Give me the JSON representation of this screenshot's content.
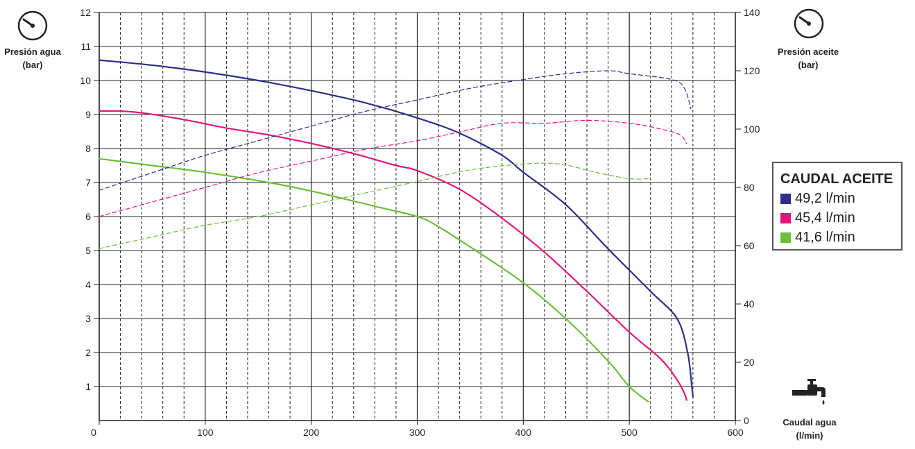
{
  "labels": {
    "left_axis": [
      "Presión agua",
      "(bar)"
    ],
    "right_axis": [
      "Presión aceite",
      "(bar)"
    ],
    "x_axis": [
      "Caudal agua",
      "(l/min)"
    ]
  },
  "legend": {
    "title": "CAUDAL ACEITE",
    "items": [
      {
        "label": "49,2 l/min",
        "color": "#2e2d8a"
      },
      {
        "label": "45,4 l/min",
        "color": "#e0167e"
      },
      {
        "label": "41,6 l/min",
        "color": "#6cbf3b"
      }
    ]
  },
  "icons": {
    "left": "pressure-gauge-icon",
    "right": "pressure-gauge-icon",
    "bottom": "water-tap-icon"
  },
  "chart_data": {
    "type": "line",
    "x_range": [
      0,
      600
    ],
    "y_left_range": [
      0,
      12
    ],
    "y_right_range": [
      0,
      140
    ],
    "x_ticks": [
      0,
      100,
      200,
      300,
      400,
      500,
      600
    ],
    "y_left_ticks": [
      1,
      2,
      3,
      4,
      5,
      6,
      7,
      8,
      9,
      10,
      11,
      12
    ],
    "y_right_ticks": [
      0,
      20,
      40,
      60,
      80,
      100,
      120,
      140
    ],
    "grid": true,
    "legend_position": "right",
    "series": [
      {
        "name": "49,2 l/min",
        "color": "#2e2d8a",
        "axis": "left",
        "style": "solid",
        "points": [
          [
            0,
            10.6
          ],
          [
            50,
            10.45
          ],
          [
            100,
            10.25
          ],
          [
            150,
            10.0
          ],
          [
            200,
            9.7
          ],
          [
            250,
            9.35
          ],
          [
            300,
            8.9
          ],
          [
            340,
            8.45
          ],
          [
            380,
            7.8
          ],
          [
            400,
            7.3
          ],
          [
            440,
            6.35
          ],
          [
            480,
            5.05
          ],
          [
            520,
            3.8
          ],
          [
            545,
            3.0
          ],
          [
            555,
            2.0
          ],
          [
            559,
            1.0
          ],
          [
            560,
            0.7
          ]
        ]
      },
      {
        "name": "45,4 l/min",
        "color": "#e0167e",
        "axis": "left",
        "style": "solid",
        "points": [
          [
            0,
            9.1
          ],
          [
            20,
            9.1
          ],
          [
            40,
            9.05
          ],
          [
            80,
            8.85
          ],
          [
            120,
            8.6
          ],
          [
            160,
            8.4
          ],
          [
            200,
            8.15
          ],
          [
            240,
            7.85
          ],
          [
            280,
            7.5
          ],
          [
            300,
            7.35
          ],
          [
            340,
            6.8
          ],
          [
            380,
            5.95
          ],
          [
            420,
            4.95
          ],
          [
            460,
            3.8
          ],
          [
            500,
            2.6
          ],
          [
            530,
            1.8
          ],
          [
            545,
            1.2
          ],
          [
            552,
            0.8
          ],
          [
            554,
            0.6
          ]
        ]
      },
      {
        "name": "41,6 l/min",
        "color": "#6cbf3b",
        "axis": "left",
        "style": "solid",
        "points": [
          [
            0,
            7.7
          ],
          [
            50,
            7.5
          ],
          [
            100,
            7.3
          ],
          [
            160,
            7.0
          ],
          [
            200,
            6.75
          ],
          [
            260,
            6.3
          ],
          [
            300,
            6.0
          ],
          [
            320,
            5.7
          ],
          [
            360,
            4.9
          ],
          [
            400,
            4.05
          ],
          [
            440,
            3.0
          ],
          [
            480,
            1.75
          ],
          [
            500,
            1.0
          ],
          [
            518,
            0.55
          ]
        ]
      },
      {
        "name": "49,2 l/min",
        "color": "#2e2d8a",
        "axis": "right",
        "style": "dashed",
        "points": [
          [
            0,
            79
          ],
          [
            50,
            85
          ],
          [
            100,
            91
          ],
          [
            150,
            96
          ],
          [
            200,
            101
          ],
          [
            250,
            106
          ],
          [
            300,
            110
          ],
          [
            350,
            114
          ],
          [
            400,
            117
          ],
          [
            440,
            119
          ],
          [
            480,
            120
          ],
          [
            500,
            119
          ],
          [
            540,
            117
          ],
          [
            552,
            114
          ],
          [
            558,
            107
          ]
        ]
      },
      {
        "name": "45,4 l/min",
        "color": "#e0167e",
        "axis": "right",
        "style": "dashed",
        "points": [
          [
            0,
            70
          ],
          [
            50,
            75
          ],
          [
            100,
            80
          ],
          [
            150,
            85
          ],
          [
            200,
            89
          ],
          [
            250,
            93
          ],
          [
            300,
            96
          ],
          [
            340,
            99
          ],
          [
            380,
            102
          ],
          [
            420,
            102
          ],
          [
            460,
            103
          ],
          [
            500,
            102
          ],
          [
            530,
            100
          ],
          [
            548,
            98
          ],
          [
            554,
            95
          ]
        ]
      },
      {
        "name": "41,6 l/min",
        "color": "#6cbf3b",
        "axis": "right",
        "style": "dashed",
        "points": [
          [
            0,
            59
          ],
          [
            50,
            63
          ],
          [
            100,
            67
          ],
          [
            150,
            70
          ],
          [
            200,
            74
          ],
          [
            250,
            78
          ],
          [
            300,
            82
          ],
          [
            350,
            86
          ],
          [
            400,
            88
          ],
          [
            435,
            88
          ],
          [
            470,
            85
          ],
          [
            500,
            83
          ],
          [
            520,
            83
          ]
        ]
      }
    ]
  }
}
